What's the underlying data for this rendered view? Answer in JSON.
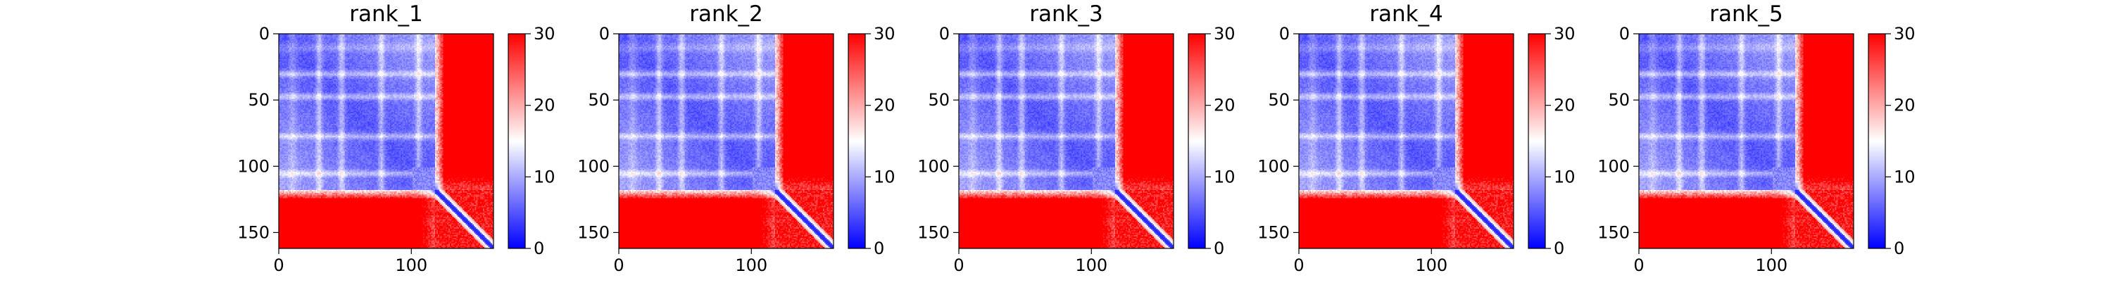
{
  "chart_data": [
    {
      "type": "heatmap",
      "title": "rank_1",
      "x_ticks": [
        0,
        100
      ],
      "y_ticks": [
        0,
        50,
        100,
        150
      ],
      "xlim": [
        0,
        162
      ],
      "ylim": [
        162,
        0
      ],
      "colorbar": {
        "ticks": [
          0,
          10,
          20,
          30
        ],
        "range": [
          0,
          30
        ]
      },
      "colormap": [
        "#0000ff",
        "#ffffff",
        "#ff0000"
      ],
      "matrix_size": 162,
      "domain_end": 118,
      "band_rows": [
        30,
        47,
        77,
        105
      ]
    },
    {
      "type": "heatmap",
      "title": "rank_2",
      "x_ticks": [
        0,
        100
      ],
      "y_ticks": [
        0,
        50,
        100,
        150
      ],
      "xlim": [
        0,
        162
      ],
      "ylim": [
        162,
        0
      ],
      "colorbar": {
        "ticks": [
          0,
          10,
          20,
          30
        ],
        "range": [
          0,
          30
        ]
      },
      "colormap": [
        "#0000ff",
        "#ffffff",
        "#ff0000"
      ],
      "matrix_size": 162,
      "domain_end": 118,
      "band_rows": [
        30,
        47,
        77,
        105
      ]
    },
    {
      "type": "heatmap",
      "title": "rank_3",
      "x_ticks": [
        0,
        100
      ],
      "y_ticks": [
        0,
        50,
        100,
        150
      ],
      "xlim": [
        0,
        162
      ],
      "ylim": [
        162,
        0
      ],
      "colorbar": {
        "ticks": [
          0,
          10,
          20,
          30
        ],
        "range": [
          0,
          30
        ]
      },
      "colormap": [
        "#0000ff",
        "#ffffff",
        "#ff0000"
      ],
      "matrix_size": 162,
      "domain_end": 118,
      "band_rows": [
        30,
        47,
        77,
        105
      ]
    },
    {
      "type": "heatmap",
      "title": "rank_4",
      "x_ticks": [
        0,
        100
      ],
      "y_ticks": [
        0,
        50,
        100,
        150
      ],
      "xlim": [
        0,
        162
      ],
      "ylim": [
        162,
        0
      ],
      "colorbar": {
        "ticks": [
          0,
          10,
          20,
          30
        ],
        "range": [
          0,
          30
        ]
      },
      "colormap": [
        "#0000ff",
        "#ffffff",
        "#ff0000"
      ],
      "matrix_size": 162,
      "domain_end": 118,
      "band_rows": [
        30,
        47,
        77,
        105
      ]
    },
    {
      "type": "heatmap",
      "title": "rank_5",
      "x_ticks": [
        0,
        100
      ],
      "y_ticks": [
        0,
        50,
        100,
        150
      ],
      "xlim": [
        0,
        162
      ],
      "ylim": [
        162,
        0
      ],
      "colorbar": {
        "ticks": [
          0,
          10,
          20,
          30
        ],
        "range": [
          0,
          30
        ]
      },
      "colormap": [
        "#0000ff",
        "#ffffff",
        "#ff0000"
      ],
      "matrix_size": 162,
      "domain_end": 118,
      "band_rows": [
        30,
        47,
        77,
        105
      ]
    }
  ]
}
